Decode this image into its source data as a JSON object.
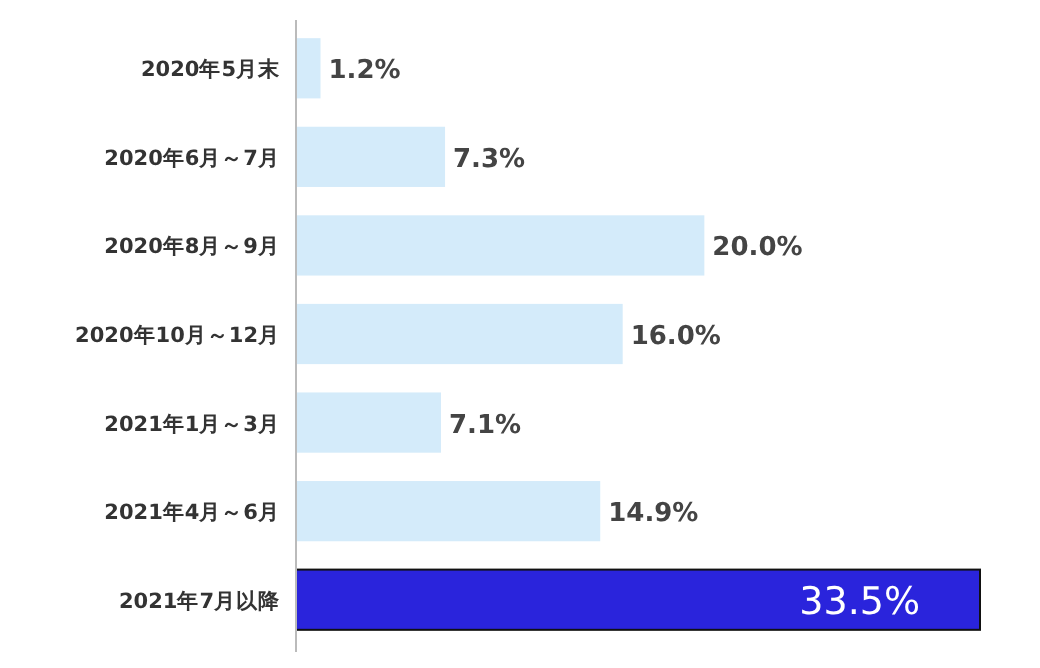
{
  "chart_data": {
    "type": "bar",
    "orientation": "horizontal",
    "categories": [
      "2020年5月末",
      "2020年6月～7月",
      "2020年8月～9月",
      "2020年10月～12月",
      "2021年1月～3月",
      "2021年4月～6月",
      "2021年7月以降"
    ],
    "values": [
      1.2,
      7.3,
      20.0,
      16.0,
      7.1,
      14.9,
      33.5
    ],
    "colors": [
      "#d4ebfa",
      "#d4ebfa",
      "#d4ebfa",
      "#d4ebfa",
      "#d4ebfa",
      "#d4ebfa",
      "#2a24dc"
    ],
    "value_labels": [
      "1.2%",
      "7.3%",
      "20.0%",
      "16.0%",
      "7.1%",
      "14.9%",
      "33.5%"
    ]
  }
}
